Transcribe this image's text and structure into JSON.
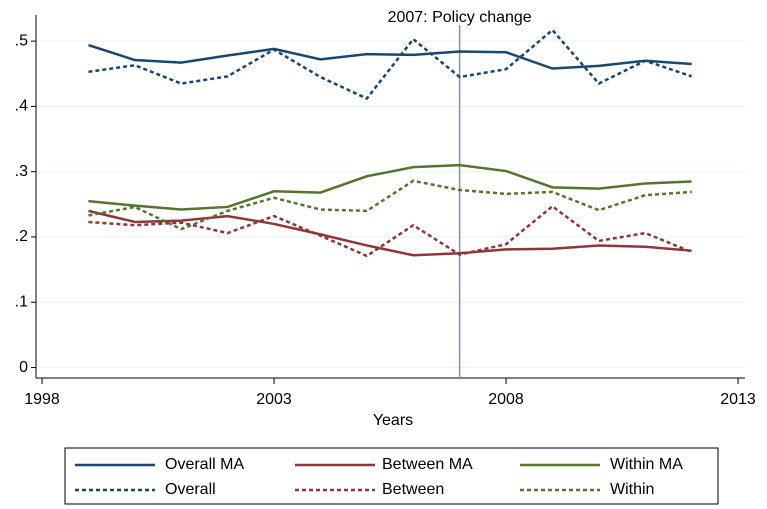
{
  "chart_data": {
    "type": "line",
    "x": [
      1999,
      2000,
      2001,
      2002,
      2003,
      2004,
      2005,
      2006,
      2007,
      2008,
      2009,
      2010,
      2011,
      2012
    ],
    "series": [
      {
        "name": "Overall MA",
        "color": "#1a476f",
        "dashed": false,
        "values": [
          0.494,
          0.471,
          0.467,
          0.478,
          0.488,
          0.472,
          0.48,
          0.479,
          0.484,
          0.483,
          0.458,
          0.462,
          0.47,
          0.465
        ]
      },
      {
        "name": "Between MA",
        "color": "#90353b",
        "dashed": false,
        "values": [
          0.24,
          0.223,
          0.225,
          0.232,
          0.22,
          0.204,
          0.187,
          0.172,
          0.175,
          0.181,
          0.182,
          0.187,
          0.185,
          0.179
        ]
      },
      {
        "name": "Within MA",
        "color": "#55752f",
        "dashed": false,
        "values": [
          0.255,
          0.248,
          0.242,
          0.246,
          0.27,
          0.268,
          0.293,
          0.307,
          0.31,
          0.301,
          0.276,
          0.274,
          0.282,
          0.285
        ]
      },
      {
        "name": "Overall",
        "color": "#1a476f",
        "dashed": true,
        "values": [
          0.453,
          0.463,
          0.435,
          0.446,
          0.487,
          0.445,
          0.412,
          0.503,
          0.445,
          0.457,
          0.517,
          0.435,
          0.47,
          0.446
        ]
      },
      {
        "name": "Between",
        "color": "#90353b",
        "dashed": true,
        "values": [
          0.223,
          0.218,
          0.222,
          0.206,
          0.232,
          0.202,
          0.171,
          0.218,
          0.173,
          0.189,
          0.247,
          0.194,
          0.206,
          0.177
        ]
      },
      {
        "name": "Within",
        "color": "#55752f",
        "dashed": true,
        "values": [
          0.233,
          0.246,
          0.212,
          0.24,
          0.26,
          0.242,
          0.24,
          0.286,
          0.272,
          0.266,
          0.269,
          0.241,
          0.264,
          0.269
        ]
      }
    ],
    "x_label": "Years",
    "xlim": [
      1997.87,
      2013.15
    ],
    "xticks": [
      1998,
      2003,
      2008,
      2013
    ],
    "ylim": [
      -0.016,
      0.54
    ],
    "yticks": [
      0,
      {
        "value": 0.1,
        "label": ".1"
      },
      {
        "value": 0.2,
        "label": ".2"
      },
      {
        "value": 0.3,
        "label": ".3"
      },
      {
        "value": 0.4,
        "label": ".4"
      },
      {
        "value": 0.5,
        "label": ".5"
      }
    ],
    "grid": true,
    "annotation": {
      "text": "2007: Policy change",
      "x": 2007
    },
    "legend": "bottom"
  }
}
